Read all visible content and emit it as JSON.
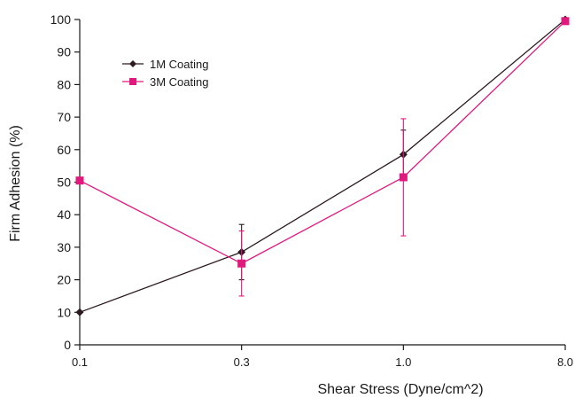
{
  "chart_data": {
    "type": "line",
    "title": "",
    "xlabel": "Shear Stress (Dyne/cm^2)",
    "ylabel": "Firm Adhesion (%)",
    "categories": [
      "0.1",
      "0.3",
      "1.0",
      "8.0"
    ],
    "ylim": [
      0,
      100
    ],
    "yticks": [
      "0",
      "10",
      "20",
      "30",
      "40",
      "50",
      "60",
      "70",
      "80",
      "90",
      "100"
    ],
    "grid": false,
    "legend": "top-left",
    "series": [
      {
        "name": "1M Coating",
        "color": "#2b1a1f",
        "marker": "diamond",
        "values": [
          10,
          28.5,
          58.5,
          100
        ],
        "error": [
          null,
          8.5,
          7.5,
          null
        ]
      },
      {
        "name": "3M Coating",
        "color": "#e0197d",
        "marker": "square",
        "values": [
          50.5,
          25,
          51.5,
          99.5
        ],
        "error": [
          null,
          10,
          18,
          null
        ]
      }
    ]
  }
}
